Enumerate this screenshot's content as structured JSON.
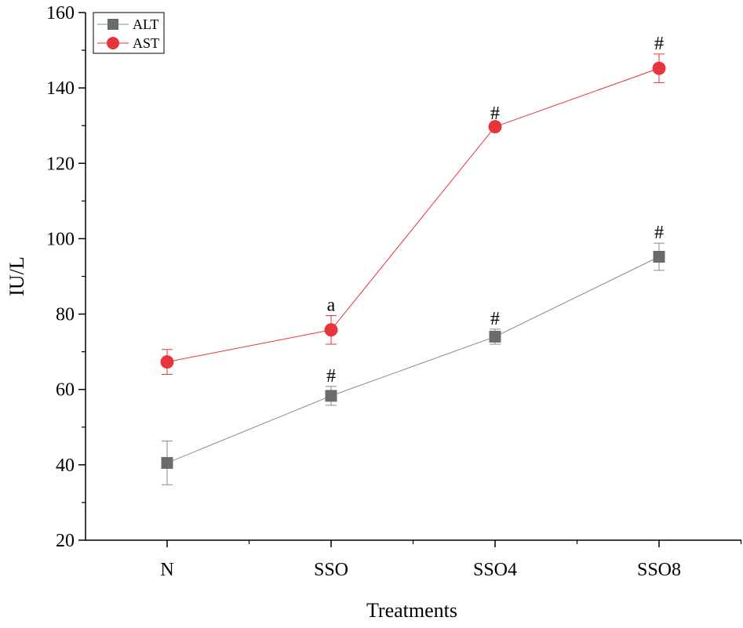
{
  "chart_data": {
    "type": "line",
    "xlabel": "Treatments",
    "ylabel": "IU/L",
    "categories": [
      "N",
      "SSO",
      "SSO4",
      "SSO8"
    ],
    "ylim": [
      20,
      160
    ],
    "yticks": [
      20,
      40,
      60,
      80,
      100,
      120,
      140,
      160
    ],
    "grid": false,
    "legend_position": "top-left",
    "series": [
      {
        "name": "ALT",
        "color": "#6b6b6b",
        "line_color": "#8a8a8a",
        "marker": "square",
        "values": [
          40.5,
          58.3,
          74.0,
          95.2
        ],
        "errors": [
          5.8,
          2.5,
          2.0,
          3.6
        ],
        "annotations": [
          "",
          "#",
          "#",
          "#"
        ]
      },
      {
        "name": "AST",
        "color": "#e8353b",
        "line_color": "#e8353b",
        "marker": "circle",
        "values": [
          67.3,
          75.8,
          129.7,
          145.2
        ],
        "errors": [
          3.3,
          3.8,
          0.8,
          3.8
        ],
        "annotations": [
          "",
          "a",
          "#",
          "#"
        ]
      }
    ]
  }
}
